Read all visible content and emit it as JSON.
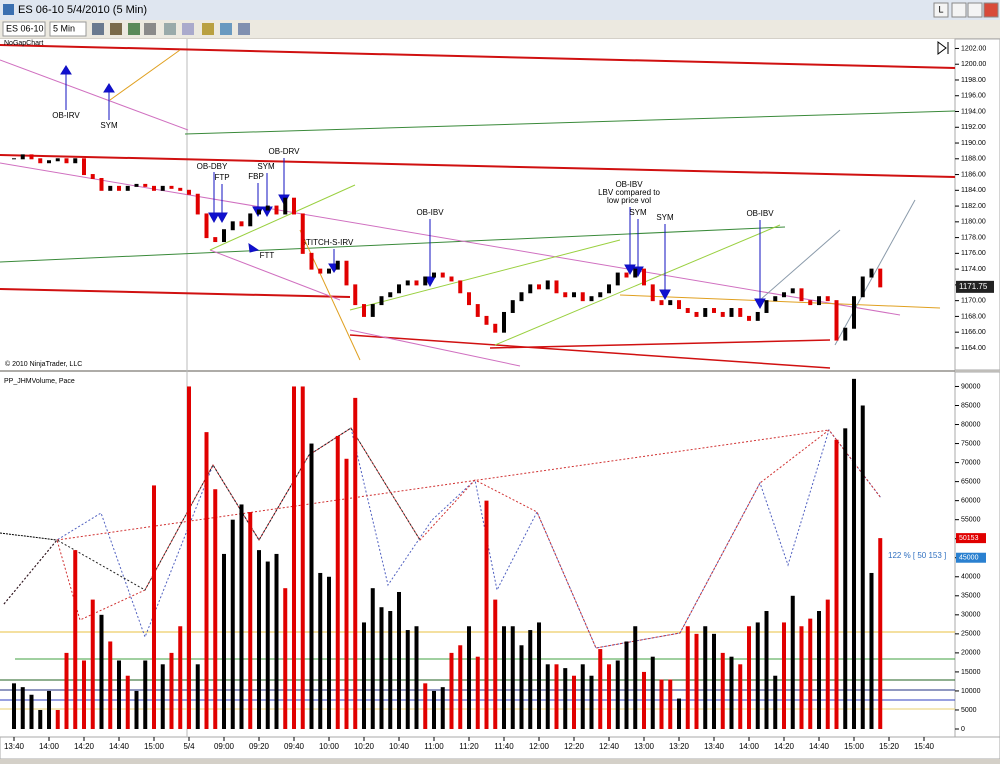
{
  "window": {
    "title": "ES 06-10  5/4/2010 (5 Min)",
    "instrument": "ES 06-10",
    "interval": "5 Min",
    "button": "L"
  },
  "chart_data": [
    {
      "type": "candlestick",
      "name": "NoGapChart",
      "copyright": "© 2010 NinjaTrader, LLC",
      "annotations": [
        "OB-IRV",
        "SYM",
        "OB-DBY",
        "FTP",
        "SYM",
        "FBP",
        "OB-DRV",
        "FTT",
        "STITCH-S-IRV",
        "OB-IBV",
        "OB-IBV",
        "LBV compared to",
        "low price vol",
        "SYM",
        "SYM",
        "OB-IBV"
      ],
      "values": [
        1188,
        1188.5,
        1188,
        1187.5,
        1187.75,
        1188,
        1187.5,
        1188,
        1186,
        1185.5,
        1184,
        1184.5,
        1184,
        1184.5,
        1184.75,
        1184.5,
        1184,
        1184.5,
        1184.25,
        1184,
        1183.5,
        1181,
        1178,
        1177.5,
        1179,
        1180,
        1179.5,
        1181,
        1181.5,
        1182,
        1181,
        1183,
        1181,
        1176,
        1174,
        1173.5,
        1174,
        1175,
        1172,
        1169.5,
        1168,
        1169.5,
        1170.5,
        1171,
        1172,
        1172.5,
        1172,
        1173,
        1173.5,
        1173,
        1172.5,
        1171,
        1169.5,
        1168,
        1167,
        1166,
        1168.5,
        1170,
        1171,
        1172,
        1171.5,
        1172.5,
        1171,
        1170.5,
        1171,
        1170,
        1170.5,
        1171,
        1172,
        1173.5,
        1173,
        1174,
        1172,
        1170,
        1169.5,
        1170,
        1169,
        1168.5,
        1168,
        1169,
        1168.5,
        1168,
        1169,
        1168,
        1167.5,
        1168.5,
        1170,
        1170.5,
        1171,
        1171.5,
        1170,
        1169.5,
        1170.5,
        1170,
        1165,
        1166.5,
        1170.5,
        1173,
        1174,
        1171.75
      ],
      "value_labels": {
        "99": "1171.75"
      },
      "up_color": "#000000",
      "down_color": "#e00000",
      "ylim": [
        1161.2,
        1203.2
      ],
      "yticks": [
        {
          "value": 1164,
          "label": "1164.00"
        },
        {
          "value": 1166,
          "label": "1166.00"
        },
        {
          "value": 1168,
          "label": "1168.00"
        },
        {
          "value": 1170,
          "label": "1170.00"
        },
        {
          "value": 1172,
          "label": "1172.00"
        },
        {
          "value": 1174,
          "label": "1174.00"
        },
        {
          "value": 1176,
          "label": "1176.00"
        },
        {
          "value": 1178,
          "label": "1178.00"
        },
        {
          "value": 1180,
          "label": "1180.00"
        },
        {
          "value": 1182,
          "label": "1182.00"
        },
        {
          "value": 1184,
          "label": "1184.00"
        },
        {
          "value": 1186,
          "label": "1186.00"
        },
        {
          "value": 1188,
          "label": "1188.00"
        },
        {
          "value": 1190,
          "label": "1190.00"
        },
        {
          "value": 1192,
          "label": "1192.00"
        },
        {
          "value": 1194,
          "label": "1194.00"
        },
        {
          "value": 1196,
          "label": "1196.00"
        },
        {
          "value": 1198,
          "label": "1198.00"
        },
        {
          "value": 1200,
          "label": "1200.00"
        },
        {
          "value": 1202,
          "label": "1202.00"
        }
      ]
    },
    {
      "type": "bar",
      "name": "PP_JHMVolume, Pace",
      "pace_label": "122 % [ 50 153 ]",
      "pace_marker": 45000,
      "categories": [
        "13:40",
        null,
        null,
        null,
        "14:00",
        null,
        null,
        null,
        "14:20",
        null,
        null,
        null,
        "14:40",
        null,
        null,
        null,
        "15:00",
        null,
        null,
        null,
        "5/4",
        null,
        null,
        null,
        "09:00",
        null,
        null,
        null,
        "09:20",
        null,
        null,
        null,
        "09:40",
        null,
        null,
        null,
        "10:00",
        null,
        null,
        null,
        "10:20",
        null,
        null,
        null,
        "10:40",
        null,
        null,
        null,
        "11:00",
        null,
        null,
        null,
        "11:20",
        null,
        null,
        null,
        "11:40",
        null,
        null,
        null,
        "12:00",
        null,
        null,
        null,
        "12:20",
        null,
        null,
        null,
        "12:40",
        null,
        null,
        null,
        "13:00",
        null,
        null,
        null,
        "13:20",
        null,
        null,
        null,
        "13:40",
        null,
        null,
        null,
        "14:00",
        null,
        null,
        null,
        "14:20",
        null,
        null,
        null,
        "14:40",
        null,
        null,
        null,
        "15:00",
        null,
        null,
        null,
        "15:20",
        null,
        null,
        null,
        "15:40"
      ],
      "values": [
        12000,
        11000,
        9000,
        5000,
        10000,
        5000,
        20000,
        47000,
        18000,
        34000,
        30000,
        23000,
        18000,
        14000,
        10000,
        18000,
        64000,
        17000,
        20000,
        27000,
        90000,
        17000,
        78000,
        63000,
        46000,
        55000,
        59000,
        57000,
        47000,
        44000,
        46000,
        37000,
        90000,
        90000,
        75000,
        41000,
        40000,
        77000,
        71000,
        87000,
        28000,
        37000,
        32000,
        31000,
        36000,
        26000,
        27000,
        12000,
        10000,
        11000,
        20000,
        22000,
        27000,
        19000,
        60000,
        34000,
        27000,
        27000,
        22000,
        26000,
        28000,
        17000,
        17000,
        16000,
        14000,
        17000,
        14000,
        21000,
        17000,
        18000,
        23000,
        27000,
        15000,
        19000,
        13000,
        13000,
        8000,
        27000,
        25000,
        27000,
        25000,
        20000,
        19000,
        17000,
        27000,
        28000,
        31000,
        14000,
        28000,
        35000,
        27000,
        29000,
        31000,
        34000,
        76000,
        79000,
        92000,
        85000,
        41000,
        50153,
        null,
        null,
        null,
        null,
        null
      ],
      "colors": [
        "#000000",
        "#000000",
        "#000000",
        "#000000",
        "#000000",
        "#e00000",
        "#e00000",
        "#e00000",
        "#e00000",
        "#e00000",
        "#000000",
        "#e00000",
        "#000000",
        "#e00000",
        "#000000",
        "#000000",
        "#e00000",
        "#000000",
        "#e00000",
        "#e00000",
        "#e00000",
        "#000000",
        "#e00000",
        "#e00000",
        "#000000",
        "#000000",
        "#000000",
        "#e00000",
        "#000000",
        "#000000",
        "#000000",
        "#e00000",
        "#e00000",
        "#e00000",
        "#000000",
        "#000000",
        "#000000",
        "#e00000",
        "#e00000",
        "#e00000",
        "#000000",
        "#000000",
        "#000000",
        "#000000",
        "#000000",
        "#000000",
        "#000000",
        "#e00000",
        "#000000",
        "#000000",
        "#e00000",
        "#e00000",
        "#000000",
        "#e00000",
        "#e00000",
        "#e00000",
        "#000000",
        "#000000",
        "#000000",
        "#000000",
        "#000000",
        "#000000",
        "#e00000",
        "#000000",
        "#e00000",
        "#000000",
        "#000000",
        "#e00000",
        "#e00000",
        "#000000",
        "#000000",
        "#000000",
        "#e00000",
        "#000000",
        "#e00000",
        "#e00000",
        "#000000",
        "#e00000",
        "#e00000",
        "#000000",
        "#000000",
        "#e00000",
        "#000000",
        "#e00000",
        "#e00000",
        "#000000",
        "#000000",
        "#000000",
        "#e00000",
        "#000000",
        "#e00000",
        "#e00000",
        "#000000",
        "#e00000",
        "#e00000",
        "#000000",
        "#000000",
        "#000000",
        "#000000",
        "#e00000",
        null,
        null,
        null,
        null,
        null
      ],
      "ylim": [
        -2100,
        93800
      ],
      "yticks": [
        0,
        5000,
        10000,
        15000,
        20000,
        25000,
        30000,
        35000,
        40000,
        45000,
        50000,
        55000,
        60000,
        65000,
        70000,
        75000,
        80000,
        85000,
        90000
      ]
    }
  ]
}
